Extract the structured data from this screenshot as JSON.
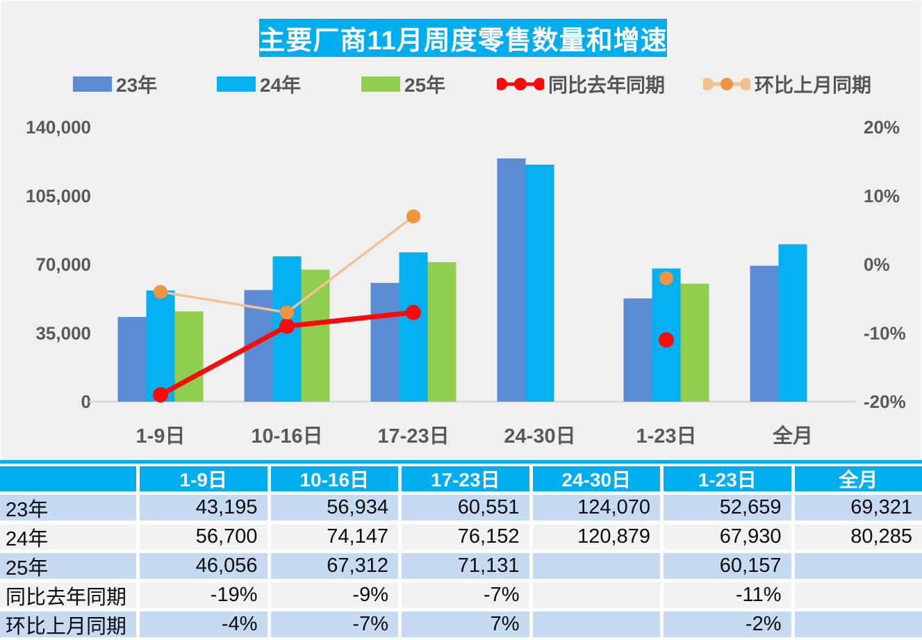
{
  "title": "主要厂商11月周度零售数量和增速",
  "colors": {
    "accent_cyan": "#00AEEF",
    "bar_blue": "#5B8CD3",
    "bar_cyan": "#04B0F0",
    "bar_green": "#90CE4F",
    "line_red": "#FA0A0A",
    "line_orange_light": "#F5C096",
    "marker_orange": "#EF9441",
    "axis_text": "#595959",
    "plot_bg": "#F0F0F0",
    "baseline": "#D6D6D6",
    "row_blue": "#C6DBF1",
    "row_gray": "#F2F2F2"
  },
  "legend": {
    "items": [
      {
        "label": "23年",
        "type": "bar",
        "color": "#5B8CD3"
      },
      {
        "label": "24年",
        "type": "bar",
        "color": "#04B0F0"
      },
      {
        "label": "25年",
        "type": "bar",
        "color": "#90CE4F"
      },
      {
        "label": "同比去年同期",
        "type": "line",
        "color": "#FA0A0A",
        "line_color": "#FA0A0A",
        "end_dot_color": "#FA0A0A"
      },
      {
        "label": "环比上月同期",
        "type": "line",
        "color": "#EF9441",
        "line_color": "#F5C096",
        "end_dot_color": "#F5BE8E"
      }
    ]
  },
  "chart_data": {
    "type": "combo-bar-line",
    "categories": [
      "1-9日",
      "10-16日",
      "17-23日",
      "24-30日",
      "1-23日",
      "全月"
    ],
    "bar_series": [
      {
        "name": "23年",
        "color": "#5B8CD3",
        "values": [
          43195,
          56934,
          60551,
          124070,
          52659,
          69321
        ]
      },
      {
        "name": "24年",
        "color": "#04B0F0",
        "values": [
          56700,
          74147,
          76152,
          120879,
          67930,
          80285
        ]
      },
      {
        "name": "25年",
        "color": "#90CE4F",
        "values": [
          46056,
          67312,
          71131,
          null,
          60157,
          null
        ]
      }
    ],
    "line_series": [
      {
        "name": "同比去年同期",
        "marker_color": "#FA0A0A",
        "line_color": "#FA0A0A",
        "line_width": 7,
        "marker_r": 11,
        "values_pct": [
          -19,
          -9,
          -7,
          null,
          -11,
          null
        ]
      },
      {
        "name": "环比上月同期",
        "marker_color": "#EF9441",
        "line_color": "#F5C096",
        "line_width": 3.5,
        "marker_r": 10,
        "values_pct": [
          -4,
          -7,
          7,
          null,
          -2,
          null
        ]
      }
    ],
    "left_axis": {
      "max": 140000,
      "ticks": [
        0,
        35000,
        70000,
        105000,
        140000
      ],
      "labels": [
        "0",
        "35,000",
        "70,000",
        "105,000",
        "140,000"
      ]
    },
    "right_axis": {
      "min": -20,
      "max": 20,
      "ticks": [
        -20,
        -10,
        0,
        10,
        20
      ],
      "labels": [
        "-20%",
        "-10%",
        "0%",
        "10%",
        "20%"
      ]
    },
    "grid": false,
    "legend_position": "top"
  },
  "table": {
    "header": [
      "",
      "1-9日",
      "10-16日",
      "17-23日",
      "24-30日",
      "1-23日",
      "全月"
    ],
    "rows": [
      {
        "label": "23年",
        "shade": "blue",
        "cells": [
          "43,195",
          "56,934",
          "60,551",
          "124,070",
          "52,659",
          "69,321"
        ]
      },
      {
        "label": "24年",
        "shade": "gray",
        "cells": [
          "56,700",
          "74,147",
          "76,152",
          "120,879",
          "67,930",
          "80,285"
        ]
      },
      {
        "label": "25年",
        "shade": "blue",
        "cells": [
          "46,056",
          "67,312",
          "71,131",
          "",
          "60,157",
          ""
        ]
      },
      {
        "label": "同比去年同期",
        "shade": "gray",
        "cells": [
          "-19%",
          "-9%",
          "-7%",
          "",
          "-11%",
          ""
        ]
      },
      {
        "label": "环比上月同期",
        "shade": "blue",
        "cells": [
          "-4%",
          "-7%",
          "7%",
          "",
          "-2%",
          ""
        ]
      }
    ]
  }
}
